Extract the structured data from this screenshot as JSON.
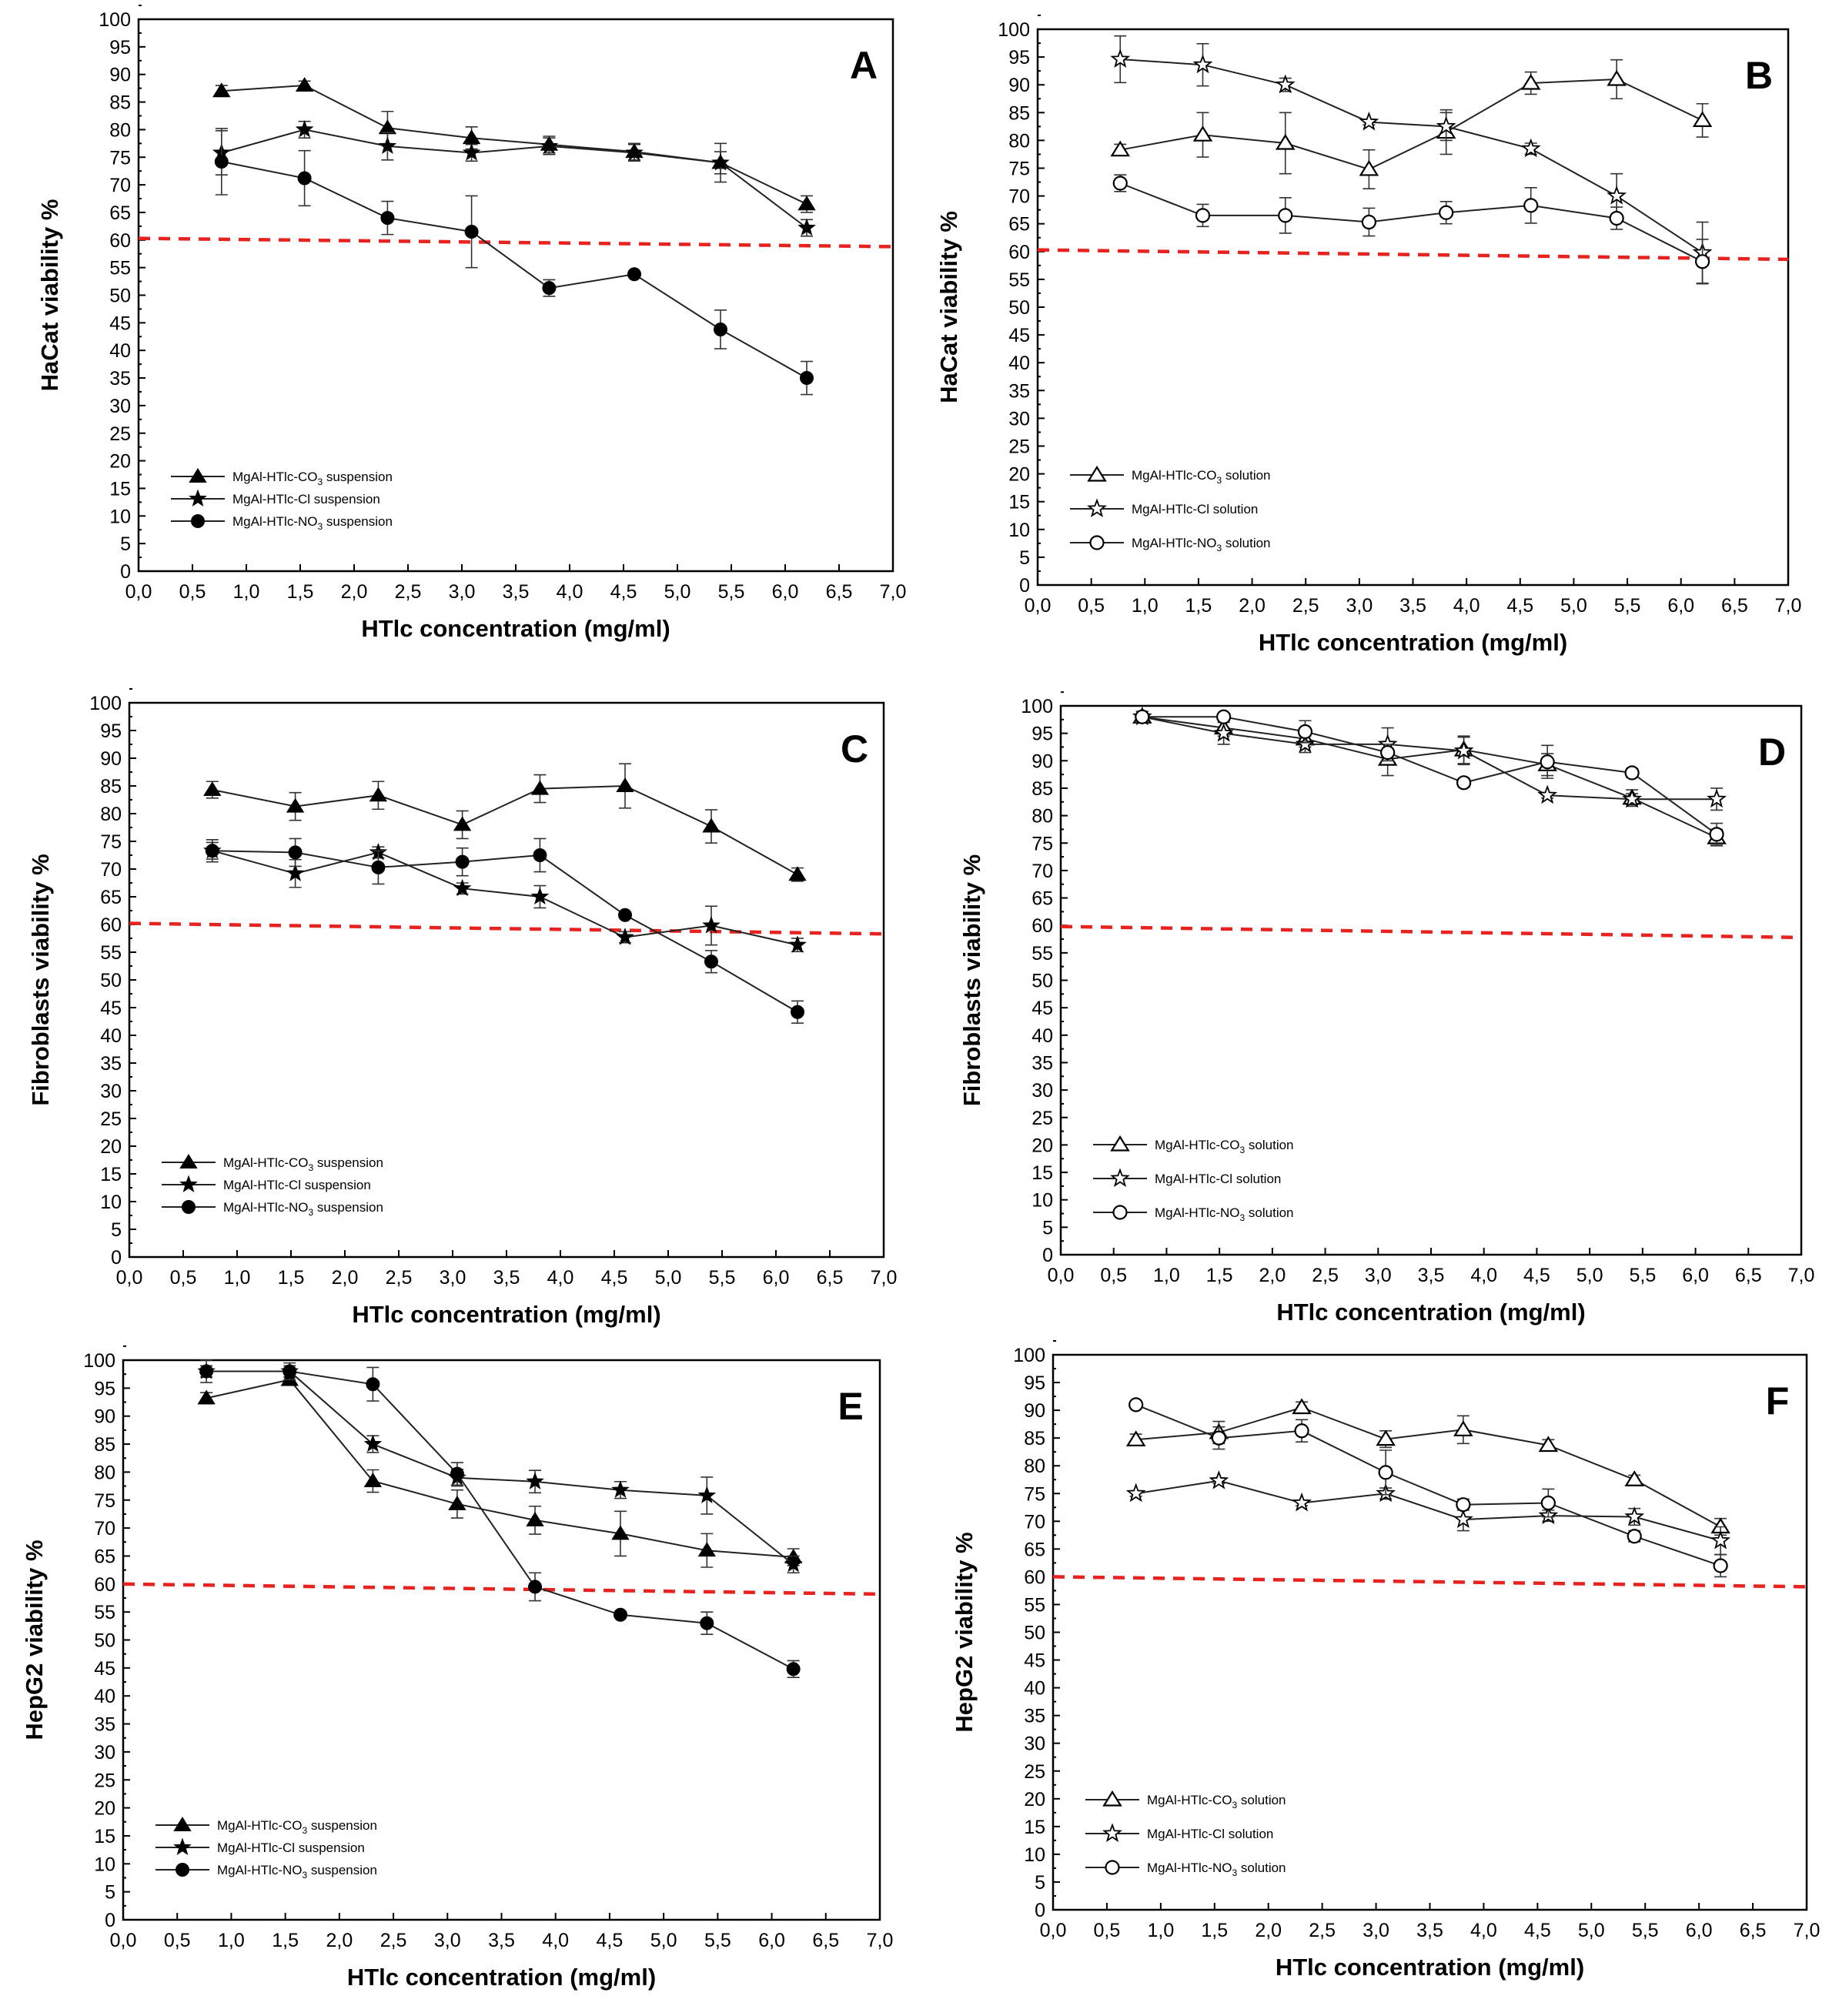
{
  "chart_data": [
    {
      "panel": "A",
      "type": "line",
      "filled": true,
      "title": "",
      "xlabel": "HTlc concentration (mg/ml)",
      "ylabel": "HaCat viability %",
      "xlim": [
        0,
        7
      ],
      "ylim": [
        0,
        100
      ],
      "x_ticks": [
        "0,0",
        "0,5",
        "1,0",
        "1,5",
        "2,0",
        "2,5",
        "3,0",
        "3,5",
        "4,0",
        "4,5",
        "5,0",
        "5,5",
        "6,0",
        "6,5",
        "7,0"
      ],
      "y_ticks": [
        "0",
        "5",
        "10",
        "15",
        "20",
        "25",
        "30",
        "35",
        "40",
        "45",
        "50",
        "55",
        "60",
        "65",
        "70",
        "75",
        "80",
        "85",
        "90",
        "95",
        "100"
      ],
      "threshold": {
        "y_start": 60.3,
        "y_end": 58.8
      },
      "legend": {
        "position": "bottom-left",
        "entries": [
          {
            "name": "MgAl-HTlc-CO",
            "sub": "3",
            "suffix": " suspension",
            "marker": "triangle"
          },
          {
            "name": "MgAl-HTlc-Cl",
            "sub": "",
            "suffix": " suspension",
            "marker": "star"
          },
          {
            "name": "MgAl-HTlc-NO",
            "sub": "3",
            "suffix": " suspension",
            "marker": "circle"
          }
        ]
      },
      "series": [
        {
          "name": "MgAl-HTlc-CO3 suspension",
          "marker": "triangle",
          "x": [
            0.77,
            1.54,
            2.31,
            3.09,
            3.81,
            4.6,
            5.4,
            6.2
          ],
          "y": [
            87,
            88,
            80.3,
            78.5,
            77.3,
            76,
            74,
            66.5
          ],
          "err": [
            1,
            0.8,
            3,
            2,
            1.5,
            1.5,
            3.5,
            1.5
          ]
        },
        {
          "name": "MgAl-HTlc-Cl suspension",
          "marker": "star",
          "x": [
            0.77,
            1.54,
            2.31,
            3.09,
            3.81,
            4.6,
            5.4,
            6.2
          ],
          "y": [
            75.8,
            80,
            77,
            75.8,
            77,
            75.8,
            74,
            62.2
          ],
          "err": [
            4,
            1.5,
            2.5,
            1.5,
            1.5,
            1.5,
            2,
            1.5
          ]
        },
        {
          "name": "MgAl-HTlc-NO3 suspension",
          "marker": "circle",
          "x": [
            0.77,
            1.54,
            2.31,
            3.09,
            3.81,
            4.6,
            5.4,
            6.2
          ],
          "y": [
            74.2,
            71.2,
            64,
            61.5,
            51.3,
            53.8,
            43.8,
            35
          ],
          "err": [
            6,
            5,
            3,
            6.5,
            1.5,
            0,
            3.5,
            3
          ]
        }
      ]
    },
    {
      "panel": "B",
      "type": "line",
      "filled": false,
      "title": "",
      "xlabel": "HTlc concentration (mg/ml)",
      "ylabel": "HaCat viability %",
      "xlim": [
        0,
        7
      ],
      "ylim": [
        0,
        100
      ],
      "x_ticks": [
        "0,0",
        "0,5",
        "1,0",
        "1,5",
        "2,0",
        "2,5",
        "3,0",
        "3,5",
        "4,0",
        "4,5",
        "5,0",
        "5,5",
        "6,0",
        "6,5",
        "7,0"
      ],
      "y_ticks": [
        "0",
        "5",
        "10",
        "15",
        "20",
        "25",
        "30",
        "35",
        "40",
        "45",
        "50",
        "55",
        "60",
        "65",
        "70",
        "75",
        "80",
        "85",
        "90",
        "95",
        "100"
      ],
      "threshold": {
        "y_start": 60.3,
        "y_end": 58.6
      },
      "legend": {
        "position": "bottom-left",
        "entries": [
          {
            "name": "MgAl-HTlc-CO",
            "sub": "3",
            "suffix": " solution",
            "marker": "triangle"
          },
          {
            "name": "MgAl-HTlc-Cl",
            "sub": "",
            "suffix": " solution",
            "marker": "star"
          },
          {
            "name": "MgAl-HTlc-NO",
            "sub": "3",
            "suffix": " solution",
            "marker": "circle"
          }
        ]
      },
      "series": [
        {
          "name": "MgAl-HTlc-CO3 solution",
          "marker": "triangle",
          "x": [
            0.77,
            1.54,
            2.31,
            3.09,
            3.81,
            4.6,
            5.4,
            6.2
          ],
          "y": [
            78.3,
            81,
            79.5,
            74.8,
            81.5,
            90.3,
            91,
            83.6
          ],
          "err": [
            1,
            4,
            5.5,
            3.5,
            4,
            2,
            3.5,
            3
          ]
        },
        {
          "name": "MgAl-HTlc-Cl solution",
          "marker": "star",
          "x": [
            0.77,
            1.54,
            2.31,
            3.09,
            3.81,
            4.6,
            5.4,
            6.2
          ],
          "y": [
            94.6,
            93.6,
            90,
            83.3,
            82.5,
            78.5,
            70,
            59.8
          ],
          "err": [
            4.2,
            3.8,
            1.2,
            0.5,
            2.5,
            1,
            4,
            5.5
          ]
        },
        {
          "name": "MgAl-HTlc-NO3 solution",
          "marker": "circle",
          "x": [
            0.77,
            1.54,
            2.31,
            3.09,
            3.81,
            4.6,
            5.4,
            6.2
          ],
          "y": [
            72.3,
            66.5,
            66.5,
            65.3,
            67,
            68.3,
            66,
            58.2
          ],
          "err": [
            1.5,
            2,
            3.2,
            2.5,
            2,
            3.2,
            2,
            4
          ]
        }
      ]
    },
    {
      "panel": "C",
      "type": "line",
      "filled": true,
      "title": "",
      "xlabel": "HTlc concentration (mg/ml)",
      "ylabel": "Fibroblasts viability %",
      "xlim": [
        0,
        7
      ],
      "ylim": [
        0,
        100
      ],
      "x_ticks": [
        "0,0",
        "0,5",
        "1,0",
        "1,5",
        "2,0",
        "2,5",
        "3,0",
        "3,5",
        "4,0",
        "4,5",
        "5,0",
        "5,5",
        "6,0",
        "6,5",
        "7,0"
      ],
      "y_ticks": [
        "0",
        "5",
        "10",
        "15",
        "20",
        "25",
        "30",
        "35",
        "40",
        "45",
        "50",
        "55",
        "60",
        "65",
        "70",
        "75",
        "80",
        "85",
        "90",
        "95",
        "100"
      ],
      "threshold": {
        "y_start": 60.2,
        "y_end": 58.3
      },
      "legend": {
        "position": "bottom-left",
        "entries": [
          {
            "name": "MgAl-HTlc-CO",
            "sub": "3",
            "suffix": " suspension",
            "marker": "triangle"
          },
          {
            "name": "MgAl-HTlc-Cl",
            "sub": "",
            "suffix": " suspension",
            "marker": "star"
          },
          {
            "name": "MgAl-HTlc-NO",
            "sub": "3",
            "suffix": " suspension",
            "marker": "circle"
          }
        ]
      },
      "series": [
        {
          "name": "MgAl-HTlc-CO3 suspension",
          "marker": "triangle",
          "x": [
            0.77,
            1.54,
            2.31,
            3.09,
            3.81,
            4.6,
            5.4,
            6.2
          ],
          "y": [
            84.3,
            81.3,
            83.3,
            78,
            84.5,
            85,
            77.7,
            69
          ],
          "err": [
            1.5,
            2.5,
            2.5,
            2.5,
            2.5,
            4,
            3,
            1.2
          ]
        },
        {
          "name": "MgAl-HTlc-Cl suspension",
          "marker": "star",
          "x": [
            0.77,
            1.54,
            2.31,
            3.09,
            3.81,
            4.6,
            5.4,
            6.2
          ],
          "y": [
            73.3,
            69.2,
            73,
            66.5,
            65,
            57.7,
            59.8,
            56.3
          ],
          "err": [
            2,
            2.5,
            1,
            1,
            2,
            1,
            3.5,
            1.2
          ]
        },
        {
          "name": "MgAl-HTlc-NO3 suspension",
          "marker": "circle",
          "x": [
            0.77,
            1.54,
            2.31,
            3.09,
            3.81,
            4.6,
            5.4,
            6.2
          ],
          "y": [
            73.3,
            73,
            70.3,
            71.3,
            72.5,
            61.7,
            53.3,
            44.2
          ],
          "err": [
            1.5,
            2.5,
            3,
            2.5,
            3,
            0.5,
            2,
            2
          ]
        }
      ]
    },
    {
      "panel": "D",
      "type": "line",
      "filled": false,
      "title": "",
      "xlabel": "HTlc concentration (mg/ml)",
      "ylabel": "Fibroblasts viability %",
      "xlim": [
        0,
        7
      ],
      "ylim": [
        0,
        100
      ],
      "x_ticks": [
        "0,0",
        "0,5",
        "1,0",
        "1,5",
        "2,0",
        "2,5",
        "3,0",
        "3,5",
        "4,0",
        "4,5",
        "5,0",
        "5,5",
        "6,0",
        "6,5",
        "7,0"
      ],
      "y_ticks": [
        "0",
        "5",
        "10",
        "15",
        "20",
        "25",
        "30",
        "35",
        "40",
        "45",
        "50",
        "55",
        "60",
        "65",
        "70",
        "75",
        "80",
        "85",
        "90",
        "95",
        "100"
      ],
      "threshold": {
        "y_start": 59.8,
        "y_end": 57.8
      },
      "legend": {
        "position": "bottom-left",
        "entries": [
          {
            "name": "MgAl-HTlc-CO",
            "sub": "3",
            "suffix": " solution",
            "marker": "triangle"
          },
          {
            "name": "MgAl-HTlc-Cl",
            "sub": "",
            "suffix": " solution",
            "marker": "star"
          },
          {
            "name": "MgAl-HTlc-NO",
            "sub": "3",
            "suffix": " solution",
            "marker": "circle"
          }
        ]
      },
      "series": [
        {
          "name": "MgAl-HTlc-CO3 solution",
          "marker": "triangle",
          "x": [
            0.77,
            1.54,
            2.31,
            3.09,
            3.81,
            4.6,
            5.4,
            6.2
          ],
          "y": [
            98,
            96,
            94,
            90.3,
            92,
            89.3,
            83.2,
            76
          ],
          "err": [
            1,
            1.5,
            1.5,
            3,
            2.5,
            2,
            1.5,
            1.5
          ]
        },
        {
          "name": "MgAl-HTlc-Cl solution",
          "marker": "star",
          "x": [
            0.77,
            1.54,
            2.31,
            3.09,
            3.81,
            4.6,
            5.4,
            6.2
          ],
          "y": [
            98,
            95,
            93,
            93,
            91.8,
            83.7,
            83,
            83
          ],
          "err": [
            1,
            2,
            1.5,
            3,
            2.5,
            0.5,
            1,
            2
          ]
        },
        {
          "name": "MgAl-HTlc-NO3 solution",
          "marker": "circle",
          "x": [
            0.77,
            1.54,
            2.31,
            3.09,
            3.81,
            4.6,
            5.4,
            6.2
          ],
          "y": [
            98,
            98,
            95.3,
            91.5,
            86,
            89.8,
            87.8,
            76.6
          ],
          "err": [
            0.5,
            0.5,
            2,
            1.5,
            0.8,
            3,
            0.8,
            2
          ]
        }
      ]
    },
    {
      "panel": "E",
      "type": "line",
      "filled": true,
      "title": "",
      "xlabel": "HTlc concentration (mg/ml)",
      "ylabel": "HepG2 viability %",
      "xlim": [
        0,
        7
      ],
      "ylim": [
        0,
        100
      ],
      "x_ticks": [
        "0,0",
        "0,5",
        "1,0",
        "1,5",
        "2,0",
        "2,5",
        "3,0",
        "3,5",
        "4,0",
        "4,5",
        "5,0",
        "5,5",
        "6,0",
        "6,5",
        "7,0"
      ],
      "y_ticks": [
        "0",
        "5",
        "10",
        "15",
        "20",
        "25",
        "30",
        "35",
        "40",
        "45",
        "50",
        "55",
        "60",
        "65",
        "70",
        "75",
        "80",
        "85",
        "90",
        "95",
        "100"
      ],
      "threshold": {
        "y_start": 60,
        "y_end": 58.2
      },
      "legend": {
        "position": "bottom-left",
        "entries": [
          {
            "name": "MgAl-HTlc-CO",
            "sub": "3",
            "suffix": " suspension",
            "marker": "triangle"
          },
          {
            "name": "MgAl-HTlc-Cl",
            "sub": "",
            "suffix": " suspension",
            "marker": "star"
          },
          {
            "name": "MgAl-HTlc-NO",
            "sub": "3",
            "suffix": " suspension",
            "marker": "circle"
          }
        ]
      },
      "series": [
        {
          "name": "MgAl-HTlc-CO3 suspension",
          "marker": "triangle",
          "x": [
            0.77,
            1.54,
            2.31,
            3.09,
            3.81,
            4.6,
            5.4,
            6.2
          ],
          "y": [
            93.2,
            96.5,
            78.4,
            74.3,
            71.4,
            69,
            66,
            64.8
          ],
          "err": [
            1,
            1,
            2,
            2.5,
            2.5,
            4,
            3,
            1.5
          ]
        },
        {
          "name": "MgAl-HTlc-Cl suspension",
          "marker": "star",
          "x": [
            0.77,
            1.54,
            2.31,
            3.09,
            3.81,
            4.6,
            5.4,
            6.2
          ],
          "y": [
            98,
            98,
            85,
            79,
            78.3,
            76.8,
            75.8,
            63.5
          ],
          "err": [
            1,
            1,
            1.5,
            1.5,
            2,
            1.5,
            3.3,
            1.5
          ]
        },
        {
          "name": "MgAl-HTlc-NO3 suspension",
          "marker": "circle",
          "x": [
            0.77,
            1.54,
            2.31,
            3.09,
            3.81,
            4.6,
            5.4,
            6.2
          ],
          "y": [
            98,
            98,
            95.7,
            79.7,
            59.5,
            54.5,
            53,
            44.8
          ],
          "err": [
            2,
            1.5,
            3,
            2,
            2.5,
            0.5,
            2,
            1.5
          ]
        }
      ]
    },
    {
      "panel": "F",
      "type": "line",
      "filled": false,
      "title": "",
      "xlabel": "HTlc concentration (mg/ml)",
      "ylabel": "HepG2 viability %",
      "xlim": [
        0,
        7
      ],
      "ylim": [
        0,
        100
      ],
      "x_ticks": [
        "0,0",
        "0,5",
        "1,0",
        "1,5",
        "2,0",
        "2,5",
        "3,0",
        "3,5",
        "4,0",
        "4,5",
        "5,0",
        "5,5",
        "6,0",
        "6,5",
        "7,0"
      ],
      "y_ticks": [
        "0",
        "5",
        "10",
        "15",
        "20",
        "25",
        "30",
        "35",
        "40",
        "45",
        "50",
        "55",
        "60",
        "65",
        "70",
        "75",
        "80",
        "85",
        "90",
        "95",
        "100"
      ],
      "threshold": {
        "y_start": 60,
        "y_end": 58.2
      },
      "legend": {
        "position": "bottom-left",
        "entries": [
          {
            "name": "MgAl-HTlc-CO",
            "sub": "3",
            "suffix": " solution",
            "marker": "triangle"
          },
          {
            "name": "MgAl-HTlc-Cl",
            "sub": "",
            "suffix": " solution",
            "marker": "star"
          },
          {
            "name": "MgAl-HTlc-NO",
            "sub": "3",
            "suffix": " solution",
            "marker": "circle"
          }
        ]
      },
      "series": [
        {
          "name": "MgAl-HTlc-CO3 solution",
          "marker": "triangle",
          "x": [
            0.77,
            1.54,
            2.31,
            3.09,
            3.81,
            4.6,
            5.4,
            6.2
          ],
          "y": [
            84.7,
            86,
            90.5,
            84.8,
            86.5,
            83.7,
            77.5,
            69
          ],
          "err": [
            1,
            2,
            1,
            1.5,
            2.5,
            1,
            0.8,
            1.5
          ]
        },
        {
          "name": "MgAl-HTlc-Cl solution",
          "marker": "star",
          "x": [
            0.77,
            1.54,
            2.31,
            3.09,
            3.81,
            4.6,
            5.4,
            6.2
          ],
          "y": [
            75,
            77.3,
            73.3,
            75,
            70.3,
            71,
            70.8,
            66.5
          ],
          "err": [
            0.5,
            0.5,
            0.5,
            1,
            2,
            1,
            1.5,
            2.5
          ]
        },
        {
          "name": "MgAl-HTlc-NO3 solution",
          "marker": "circle",
          "x": [
            0.77,
            1.54,
            2.31,
            3.09,
            3.81,
            4.6,
            5.4,
            6.2
          ],
          "y": [
            91,
            85,
            86.3,
            78.8,
            73,
            73.3,
            67.3,
            62
          ],
          "err": [
            0.5,
            2,
            2,
            4,
            1,
            2.5,
            1,
            2
          ]
        }
      ]
    }
  ]
}
